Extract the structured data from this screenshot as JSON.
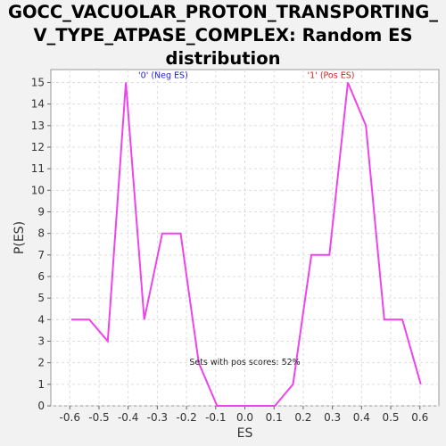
{
  "chart_data": {
    "type": "line",
    "title_lines": [
      "GOCC_VACUOLAR_PROTON_TRANSPORTING_",
      "V_TYPE_ATPASE_COMPLEX: Random ES",
      "distribution"
    ],
    "xlabel": "ES",
    "ylabel": "P(ES)",
    "xlim": [
      -0.665,
      0.665
    ],
    "ylim": [
      0,
      15.6
    ],
    "x_ticks": [
      -0.6,
      -0.5,
      -0.4,
      -0.3,
      -0.2,
      -0.1,
      0.0,
      0.1,
      0.2,
      0.3,
      0.4,
      0.5,
      0.6
    ],
    "x_tick_labels": [
      "-0.6",
      "-0.5",
      "-0.4",
      "-0.3",
      "-0.2",
      "-0.1",
      "0.0",
      "0.1",
      "0.2",
      "0.3",
      "0.4",
      "0.5",
      "0.6"
    ],
    "y_ticks": [
      0,
      1,
      2,
      3,
      4,
      5,
      6,
      7,
      8,
      9,
      10,
      11,
      12,
      13,
      14,
      15
    ],
    "grid": true,
    "series": [
      {
        "color": "#ee44ee",
        "x": [
          -0.595,
          -0.533,
          -0.47,
          -0.408,
          -0.345,
          -0.283,
          -0.22,
          -0.158,
          -0.095,
          -0.033,
          0.03,
          0.103,
          0.165,
          0.228,
          0.29,
          0.353,
          0.415,
          0.478,
          0.54,
          0.603
        ],
        "y": [
          4,
          4,
          3,
          15,
          4,
          8,
          8,
          2,
          0,
          0,
          0,
          0,
          1,
          7,
          7,
          15,
          13,
          4,
          4,
          1
        ]
      }
    ],
    "annotations": [
      {
        "text": "'0' (Neg ES)",
        "color": "#2222cc",
        "x": -0.28,
        "y": 15.2
      },
      {
        "text": "'1' (Pos ES)",
        "color": "#cc2222",
        "x": 0.295,
        "y": 15.2
      },
      {
        "text": "Sets with pos scores: 52%",
        "color": "#222222",
        "x": 0.0,
        "y": 1.9
      }
    ]
  }
}
